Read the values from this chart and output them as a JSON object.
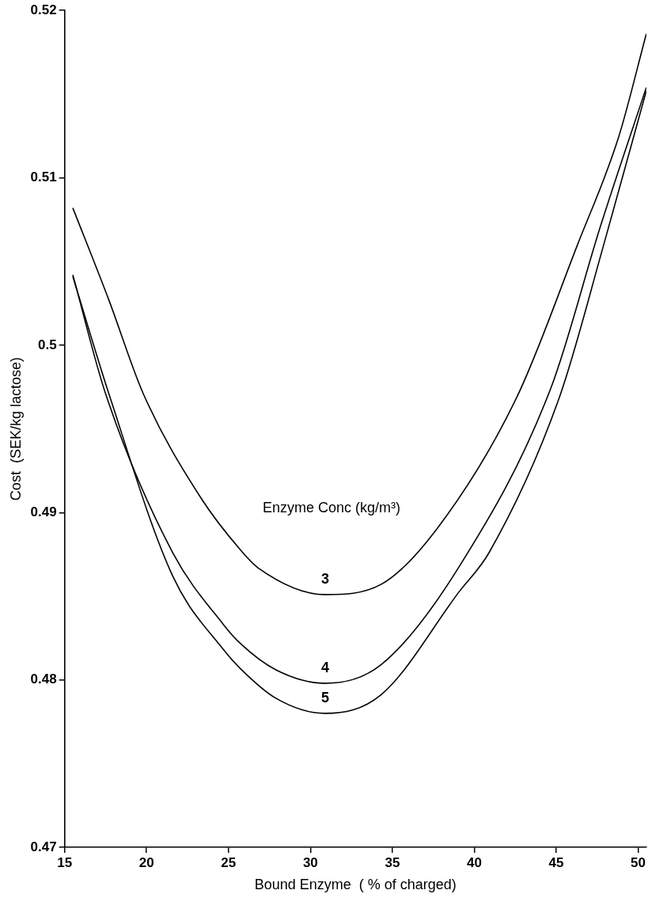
{
  "chart_data": {
    "type": "line",
    "xlabel": "Bound Enzyme  ( % of charged)",
    "ylabel": "Cost  (SEK/kg lactose)",
    "legend_title": "Enzyme Conc (kg/m³)",
    "xlim": [
      15,
      50.5
    ],
    "xticks": [
      15,
      20,
      25,
      30,
      35,
      40,
      45,
      50
    ],
    "ylim": [
      0.47,
      0.52
    ],
    "yticks": [
      0.47,
      0.48,
      0.49,
      0.5,
      0.51,
      0.52
    ],
    "grid": false,
    "legend": false,
    "marker": "none",
    "line_style": "solid",
    "series": [
      {
        "name": "3",
        "color": "#000000",
        "x": [
          15.5,
          17.7,
          19.8,
          23.3,
          25.7,
          26.8,
          30.9,
          34.3,
          37.7,
          42.6,
          46.3,
          48.8,
          50.5
        ],
        "values": [
          0.5082,
          0.5027,
          0.4971,
          0.4909,
          0.4878,
          0.4867,
          0.4851,
          0.4857,
          0.489,
          0.4969,
          0.506,
          0.5124,
          0.5186
        ]
      },
      {
        "name": "4",
        "color": "#000000",
        "x": [
          15.5,
          17.5,
          21.6,
          24.7,
          25.7,
          27.9,
          30.9,
          34.3,
          39.1,
          44.7,
          47.7,
          50.5
        ],
        "values": [
          0.5042,
          0.4971,
          0.4876,
          0.4833,
          0.4822,
          0.4806,
          0.4798,
          0.4809,
          0.4868,
          0.4975,
          0.5071,
          0.5154
        ]
      },
      {
        "name": "5",
        "color": "#000000",
        "x": [
          15.5,
          17.7,
          21.6,
          24.7,
          25.7,
          27.9,
          30.9,
          34.3,
          39.1,
          40.9,
          45.2,
          47.9,
          50.5
        ],
        "values": [
          0.5041,
          0.4971,
          0.4862,
          0.4818,
          0.4807,
          0.4789,
          0.478,
          0.4791,
          0.4853,
          0.4876,
          0.4969,
          0.506,
          0.5152
        ]
      }
    ]
  }
}
